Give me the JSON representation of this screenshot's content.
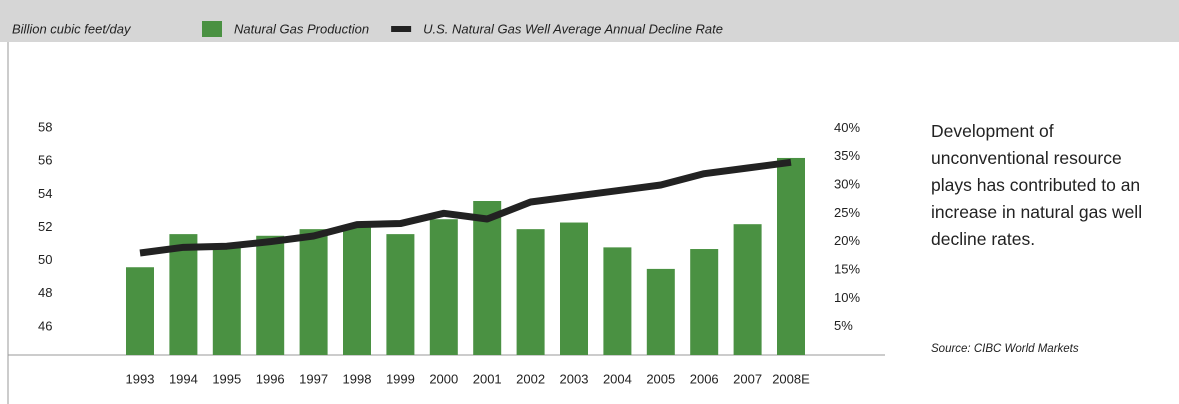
{
  "chart_data": {
    "type": "bar",
    "y_label": "Billion cubic feet/day",
    "categories": [
      "1993",
      "1994",
      "1995",
      "1996",
      "1997",
      "1998",
      "1999",
      "2000",
      "2001",
      "2002",
      "2003",
      "2004",
      "2005",
      "2006",
      "2007",
      "2008E"
    ],
    "series": [
      {
        "name": "Natural Gas Production",
        "type": "bar",
        "color": "#4a9142",
        "values": [
          49.6,
          51.6,
          51.0,
          51.5,
          51.9,
          52.0,
          51.6,
          52.5,
          53.6,
          51.9,
          52.3,
          50.8,
          49.5,
          50.7,
          52.2,
          56.2
        ]
      },
      {
        "name": "U.S. Natural Gas Well Average Annual Decline Rate",
        "type": "line",
        "axis": "y2",
        "color": "#222222",
        "values": [
          18,
          19,
          19.2,
          20,
          21,
          23,
          23.2,
          25,
          24,
          27,
          28,
          29,
          30,
          32,
          33,
          34
        ]
      }
    ],
    "ylim": [
      44.3,
      59.7
    ],
    "yticks": [
      46,
      48,
      50,
      52,
      54,
      56,
      58
    ],
    "y2lim": [
      0,
      45
    ],
    "y2ticks": [
      {
        "value": 5,
        "label": "5%"
      },
      {
        "value": 10,
        "label": "10%"
      },
      {
        "value": 15,
        "label": "15%"
      },
      {
        "value": 20,
        "label": "20%"
      },
      {
        "value": 25,
        "label": "25%"
      },
      {
        "value": 30,
        "label": "30%"
      },
      {
        "value": 35,
        "label": "35%"
      },
      {
        "value": 40,
        "label": "40%"
      }
    ],
    "annotation": "Development of unconventional resource plays has contributed to an increase in natural gas well decline rates.",
    "source": "Source: CIBC World Markets"
  }
}
